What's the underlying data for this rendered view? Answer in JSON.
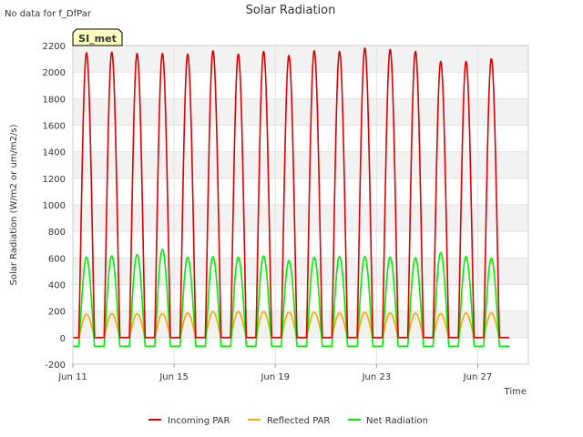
{
  "corner_note": "No data for f_DfPar",
  "site_badge": "SI_met",
  "chart_data": {
    "type": "line",
    "title": "Solar Radiation",
    "xlabel": "Time",
    "ylabel": "Solar Radiation (W/m2 or um/m2/s)",
    "ylim": [
      -200,
      2200
    ],
    "yticks": [
      -200,
      0,
      200,
      400,
      600,
      800,
      1000,
      1200,
      1400,
      1600,
      1800,
      2000,
      2200
    ],
    "xlim": [
      "2023-06-11",
      "2023-06-29"
    ],
    "xtick_labels": [
      "Jun 11",
      "Jun 15",
      "Jun 19",
      "Jun 23",
      "Jun 27"
    ],
    "xtick_dates": [
      "2023-06-11",
      "2023-06-15",
      "2023-06-19",
      "2023-06-23",
      "2023-06-27"
    ],
    "grid": true,
    "legend_position": "bottom",
    "days": [
      "2023-06-11",
      "2023-06-12",
      "2023-06-13",
      "2023-06-14",
      "2023-06-15",
      "2023-06-16",
      "2023-06-17",
      "2023-06-18",
      "2023-06-19",
      "2023-06-20",
      "2023-06-21",
      "2023-06-22",
      "2023-06-23",
      "2023-06-24",
      "2023-06-25",
      "2023-06-26",
      "2023-06-27",
      "2023-06-28"
    ],
    "series": [
      {
        "name": "Incoming PAR",
        "color": "#dd0000",
        "daily_peak": [
          2145,
          2150,
          2140,
          2140,
          2135,
          2160,
          2135,
          2155,
          2125,
          2160,
          2155,
          2180,
          2170,
          2155,
          2080,
          2080,
          2100,
          0
        ],
        "night_value": 0
      },
      {
        "name": "Reflected PAR",
        "color": "#ffa500",
        "daily_peak": [
          175,
          180,
          180,
          180,
          185,
          195,
          195,
          195,
          190,
          190,
          185,
          190,
          185,
          185,
          180,
          185,
          185,
          0
        ],
        "night_value": 0
      },
      {
        "name": "Net Radiation",
        "color": "#00ee00",
        "daily_peak": [
          605,
          615,
          625,
          665,
          605,
          610,
          605,
          615,
          580,
          605,
          610,
          610,
          605,
          600,
          640,
          610,
          595,
          0
        ],
        "night_value": -65
      }
    ]
  }
}
